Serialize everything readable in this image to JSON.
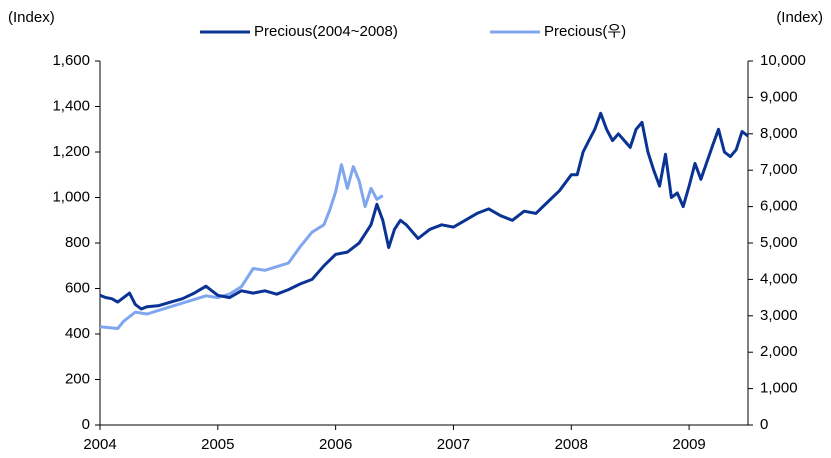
{
  "chart_data": {
    "type": "line",
    "y_label": "(Index)",
    "y2_label": "(Index)",
    "xlim": [
      2004,
      2009.5
    ],
    "xticks": [
      2004,
      2005,
      2006,
      2007,
      2008,
      2009
    ],
    "ylim": [
      0,
      1600
    ],
    "yticks": [
      0,
      200,
      400,
      600,
      800,
      {
        "value": 1000,
        "label": "1,000"
      },
      {
        "value": 1200,
        "label": "1,200"
      },
      {
        "value": 1400,
        "label": "1,400"
      },
      {
        "value": 1600,
        "label": "1,600"
      }
    ],
    "y2lim": [
      0,
      10000
    ],
    "y2ticks": [
      0,
      {
        "value": 1000,
        "label": "1,000"
      },
      {
        "value": 2000,
        "label": "2,000"
      },
      {
        "value": 3000,
        "label": "3,000"
      },
      {
        "value": 4000,
        "label": "4,000"
      },
      {
        "value": 5000,
        "label": "5,000"
      },
      {
        "value": 6000,
        "label": "6,000"
      },
      {
        "value": 7000,
        "label": "7,000"
      },
      {
        "value": 8000,
        "label": "8,000"
      },
      {
        "value": 9000,
        "label": "9,000"
      },
      {
        "value": 10000,
        "label": "10,000"
      }
    ],
    "legend": "top",
    "series": [
      {
        "name": "Precious(2004~2008)",
        "color": "#0a3394",
        "axis": "y",
        "x": [
          2004.0,
          2004.05,
          2004.1,
          2004.15,
          2004.2,
          2004.25,
          2004.3,
          2004.35,
          2004.4,
          2004.5,
          2004.6,
          2004.7,
          2004.8,
          2004.9,
          2004.95,
          2005.0,
          2005.1,
          2005.2,
          2005.3,
          2005.4,
          2005.5,
          2005.6,
          2005.7,
          2005.8,
          2005.9,
          2006.0,
          2006.1,
          2006.2,
          2006.3,
          2006.35,
          2006.4,
          2006.45,
          2006.5,
          2006.55,
          2006.6,
          2006.7,
          2006.8,
          2006.9,
          2007.0,
          2007.1,
          2007.2,
          2007.3,
          2007.4,
          2007.5,
          2007.6,
          2007.7,
          2007.8,
          2007.9,
          2008.0,
          2008.05,
          2008.1,
          2008.15,
          2008.2,
          2008.25,
          2008.3,
          2008.35,
          2008.4,
          2008.5,
          2008.55,
          2008.6,
          2008.65,
          2008.7,
          2008.75,
          2008.8,
          2008.85,
          2008.9,
          2008.95,
          2009.0,
          2009.05,
          2009.1,
          2009.2,
          2009.25,
          2009.3,
          2009.35,
          2009.4,
          2009.45,
          2009.5
        ],
        "values": [
          570,
          560,
          555,
          540,
          560,
          580,
          530,
          510,
          520,
          525,
          540,
          555,
          580,
          610,
          590,
          570,
          560,
          590,
          580,
          590,
          575,
          595,
          620,
          640,
          700,
          750,
          760,
          800,
          880,
          970,
          900,
          780,
          860,
          900,
          880,
          820,
          860,
          880,
          870,
          900,
          930,
          950,
          920,
          900,
          940,
          930,
          980,
          1030,
          1100,
          1100,
          1200,
          1250,
          1300,
          1370,
          1300,
          1250,
          1280,
          1220,
          1300,
          1330,
          1200,
          1120,
          1050,
          1190,
          1000,
          1020,
          960,
          1050,
          1150,
          1080,
          1230,
          1300,
          1200,
          1180,
          1210,
          1290,
          1270
        ]
      },
      {
        "name": "Precious(우)",
        "color": "#7fa6ef",
        "axis": "y2",
        "x": [
          2004.0,
          2004.15,
          2004.2,
          2004.3,
          2004.4,
          2004.5,
          2004.6,
          2004.7,
          2004.8,
          2004.9,
          2005.0,
          2005.1,
          2005.2,
          2005.3,
          2005.4,
          2005.5,
          2005.6,
          2005.7,
          2005.8,
          2005.9,
          2005.95,
          2006.0,
          2006.05,
          2006.1,
          2006.15,
          2006.2,
          2006.25,
          2006.3,
          2006.35,
          2006.4
        ],
        "values": [
          2700,
          2650,
          2850,
          3100,
          3050,
          3150,
          3250,
          3350,
          3450,
          3550,
          3500,
          3600,
          3800,
          4300,
          4250,
          4350,
          4450,
          4900,
          5300,
          5500,
          5900,
          6400,
          7150,
          6500,
          7100,
          6700,
          6000,
          6500,
          6200,
          6300
        ]
      }
    ]
  }
}
